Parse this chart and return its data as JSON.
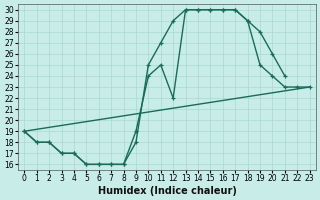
{
  "xlabel": "Humidex (Indice chaleur)",
  "bg_color": "#c8ede8",
  "grid_color": "#a8d8d2",
  "line_color": "#1a6b5a",
  "xlim": [
    -0.5,
    23.5
  ],
  "ylim": [
    15.5,
    30.5
  ],
  "xticks": [
    0,
    1,
    2,
    3,
    4,
    5,
    6,
    7,
    8,
    9,
    10,
    11,
    12,
    13,
    14,
    15,
    16,
    17,
    18,
    19,
    20,
    21,
    22,
    23
  ],
  "yticks": [
    16,
    17,
    18,
    19,
    20,
    21,
    22,
    23,
    24,
    25,
    26,
    27,
    28,
    29,
    30
  ],
  "line1_x": [
    0,
    1,
    2,
    3,
    4,
    5,
    6,
    7,
    8,
    9,
    10,
    11,
    12,
    13,
    14,
    15,
    16,
    17,
    18,
    19,
    20,
    21
  ],
  "line1_y": [
    19,
    18,
    18,
    17,
    17,
    16,
    16,
    16,
    16,
    18,
    25,
    27,
    29,
    30,
    30,
    30,
    30,
    30,
    29,
    28,
    26,
    24
  ],
  "line2_x": [
    0,
    1,
    2,
    3,
    4,
    5,
    6,
    7,
    8,
    9,
    10,
    11,
    12,
    13,
    14,
    15,
    16,
    17,
    18,
    19,
    20,
    21,
    22,
    23
  ],
  "line2_y": [
    19,
    18,
    18,
    17,
    17,
    16,
    16,
    16,
    16,
    19,
    24,
    25,
    22,
    30,
    30,
    30,
    30,
    30,
    29,
    25,
    24,
    23,
    23,
    23
  ],
  "line3_x": [
    0,
    23
  ],
  "line3_y": [
    19,
    23
  ],
  "lw": 1.0,
  "ms": 3.5,
  "tick_fs": 5.5,
  "xlabel_fs": 7.0
}
